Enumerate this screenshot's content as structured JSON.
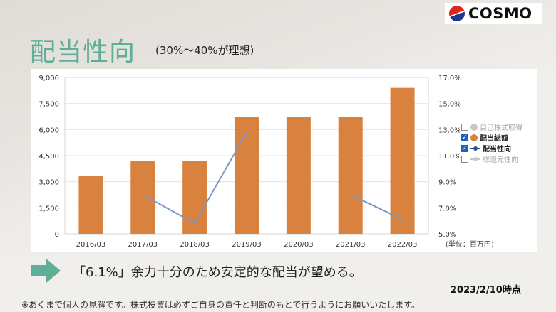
{
  "header": {
    "title": "配当性向",
    "subtitle": "(30%〜40%が理想)",
    "logo_text": "COSMO"
  },
  "message": "「6.1%」余力十分のため安定的な配当が望める。",
  "date_note": "2023/2/10時点",
  "disclaimer": "※あくまで個人の見解です。株式投資は必ずご自身の責任と判断のもとで行うようにお願いいたします。",
  "colors": {
    "bar": "#d9823f",
    "line": "#7b95c4",
    "title": "#5fae97",
    "arrow": "#5fae97",
    "checkbox_on": "#1f5fbf"
  },
  "legend": [
    {
      "label": "自己株式取得",
      "checked": false,
      "marker": "dot",
      "color": "#c8c8c8"
    },
    {
      "label": "配当総額",
      "checked": true,
      "marker": "dot",
      "color": "#d9823f"
    },
    {
      "label": "配当性向",
      "checked": true,
      "marker": "line",
      "color": "#2f4f8f"
    },
    {
      "label": "総還元性向",
      "checked": false,
      "marker": "line",
      "color": "#c8c8c8"
    }
  ],
  "chart_data": {
    "type": "bar",
    "categories": [
      "2016/03",
      "2017/03",
      "2018/03",
      "2019/03",
      "2020/03",
      "2021/03",
      "2022/03"
    ],
    "series": [
      {
        "name": "配当総額",
        "type": "bar",
        "axis": "left",
        "values": [
          3350,
          4200,
          4200,
          6750,
          6750,
          6750,
          8400
        ]
      },
      {
        "name": "配当性向",
        "type": "line",
        "axis": "right",
        "values": [
          null,
          8.0,
          5.8,
          12.8,
          null,
          8.0,
          6.1
        ]
      }
    ],
    "y_left": {
      "ylim": [
        0,
        9000
      ],
      "ticks": [
        "0",
        "1,500",
        "3,000",
        "4,500",
        "6,000",
        "7,500",
        "9,000"
      ],
      "tick_values": [
        0,
        1500,
        3000,
        4500,
        6000,
        7500,
        9000
      ]
    },
    "y_right": {
      "ylim": [
        5.0,
        17.0
      ],
      "ticks": [
        "5.0%",
        "7.0%",
        "9.0%",
        "11.0%",
        "13.0%",
        "15.0%",
        "17.0%"
      ],
      "tick_values": [
        5,
        7,
        9,
        11,
        13,
        15,
        17
      ]
    },
    "unit_note": "(単位：百万円)",
    "grid": true,
    "legend_position": "right"
  }
}
